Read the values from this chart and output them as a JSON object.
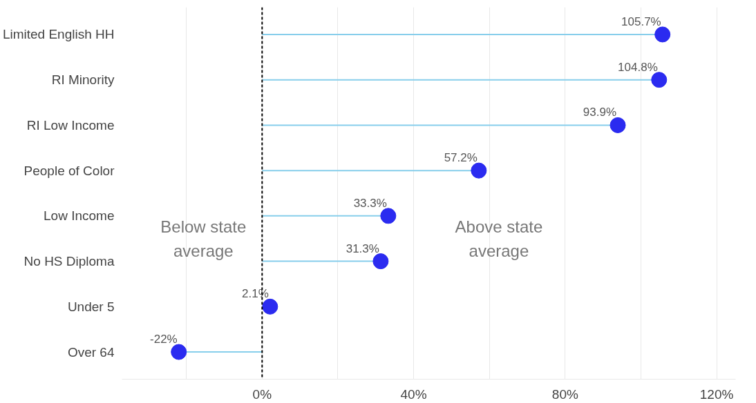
{
  "chart_data": {
    "type": "lollipop",
    "orientation": "horizontal",
    "categories": [
      "Limited English HH",
      "RI Minority",
      "RI Low Income",
      "People of Color",
      "Low Income",
      "No HS Diploma",
      "Under 5",
      "Over 64"
    ],
    "series": [
      {
        "color": "#2b2bf0",
        "values": [
          105.7,
          104.8,
          93.9,
          57.2,
          33.3,
          31.3,
          2.1,
          -22
        ],
        "value_labels": [
          "105.7%",
          "104.8%",
          "93.9%",
          "57.2%",
          "33.3%",
          "31.3%",
          "2.1%",
          "-22%"
        ]
      }
    ],
    "xlim": [
      -37,
      125
    ],
    "xticks": [
      {
        "value": -20,
        "label": null
      },
      {
        "value": 0,
        "label": "0%"
      },
      {
        "value": 20,
        "label": null
      },
      {
        "value": 40,
        "label": "40%"
      },
      {
        "value": 60,
        "label": null
      },
      {
        "value": 80,
        "label": "80%"
      },
      {
        "value": 100,
        "label": null
      },
      {
        "value": 120,
        "label": "120%"
      }
    ],
    "grid": "x",
    "marker": "circle",
    "ref_lines": [
      {
        "axis": "x",
        "value": 0,
        "label": null,
        "color": "#000000",
        "line_style": "dashed"
      }
    ],
    "annotations": [
      "Below state\naverage",
      "Above state\naverage"
    ]
  }
}
